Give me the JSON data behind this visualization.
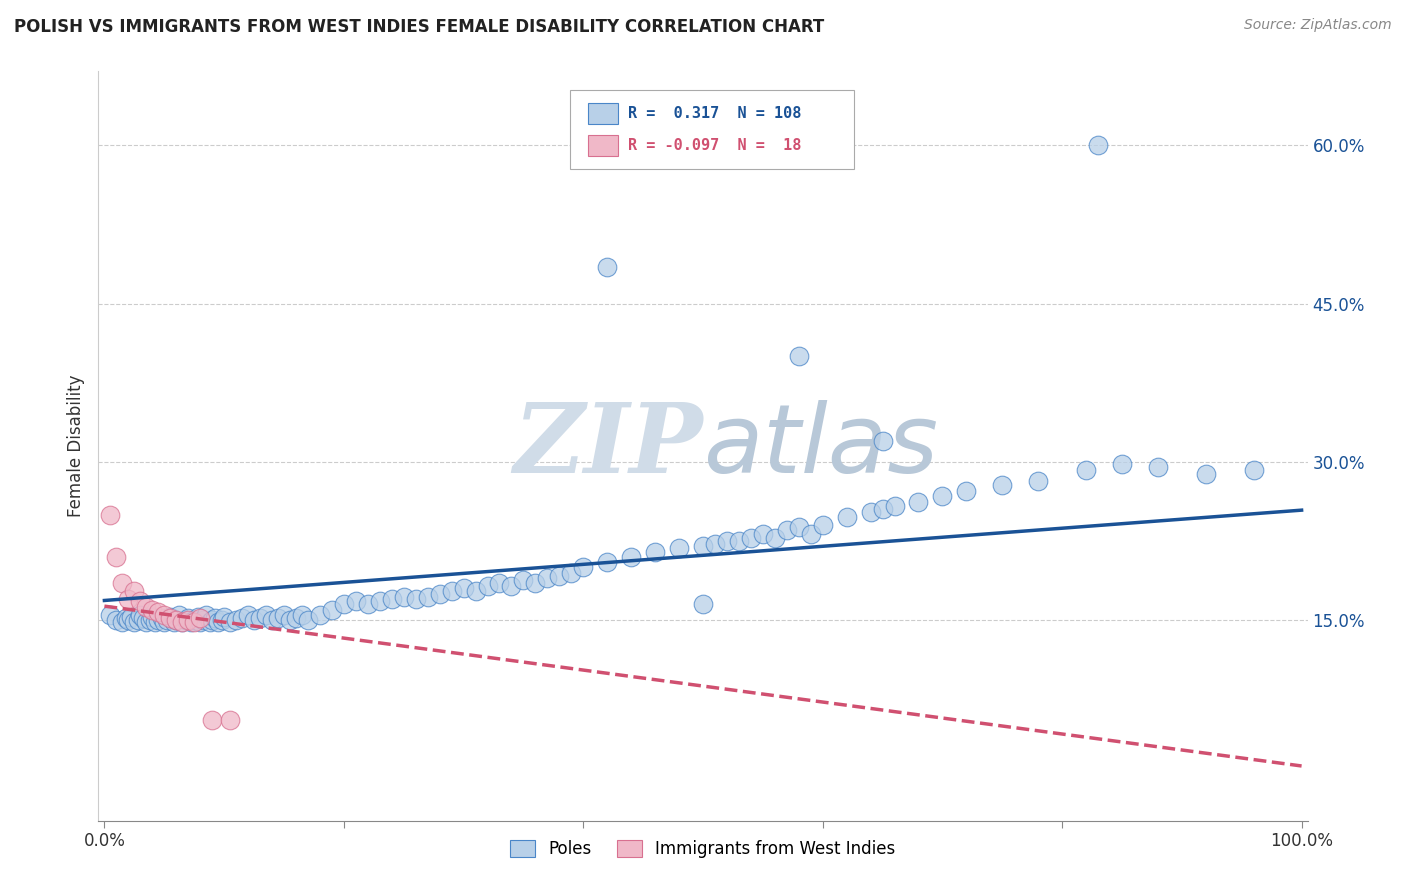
{
  "title": "POLISH VS IMMIGRANTS FROM WEST INDIES FEMALE DISABILITY CORRELATION CHART",
  "source": "Source: ZipAtlas.com",
  "ylabel": "Female Disability",
  "xlim": [
    -0.005,
    1.005
  ],
  "ylim": [
    -0.04,
    0.67
  ],
  "yticks": [
    0.15,
    0.3,
    0.45,
    0.6
  ],
  "ytick_labels": [
    "15.0%",
    "30.0%",
    "45.0%",
    "60.0%"
  ],
  "xticks": [
    0.0,
    0.2,
    0.4,
    0.6,
    0.8,
    1.0
  ],
  "xtick_labels": [
    "0.0%",
    "",
    "",
    "",
    "",
    "100.0%"
  ],
  "blue_R": 0.317,
  "blue_N": 108,
  "pink_R": -0.097,
  "pink_N": 18,
  "blue_scatter_color": "#b8d0e8",
  "blue_edge_color": "#4a86c8",
  "blue_line_color": "#1a5296",
  "pink_scatter_color": "#f0b8c8",
  "pink_edge_color": "#d87090",
  "pink_line_color": "#d05070",
  "legend_label_blue": "Poles",
  "legend_label_pink": "Immigrants from West Indies",
  "background_color": "#ffffff",
  "grid_color": "#cccccc",
  "watermark_color": "#d0dce8",
  "blue_scatter_x": [
    0.005,
    0.01,
    0.015,
    0.018,
    0.02,
    0.022,
    0.025,
    0.028,
    0.03,
    0.032,
    0.035,
    0.038,
    0.04,
    0.042,
    0.045,
    0.048,
    0.05,
    0.052,
    0.055,
    0.058,
    0.06,
    0.062,
    0.065,
    0.068,
    0.07,
    0.072,
    0.075,
    0.078,
    0.08,
    0.082,
    0.085,
    0.088,
    0.09,
    0.092,
    0.095,
    0.098,
    0.1,
    0.105,
    0.11,
    0.115,
    0.12,
    0.125,
    0.13,
    0.135,
    0.14,
    0.145,
    0.15,
    0.155,
    0.16,
    0.165,
    0.17,
    0.18,
    0.19,
    0.2,
    0.21,
    0.22,
    0.23,
    0.24,
    0.25,
    0.26,
    0.27,
    0.28,
    0.29,
    0.3,
    0.31,
    0.32,
    0.33,
    0.34,
    0.35,
    0.36,
    0.37,
    0.38,
    0.39,
    0.4,
    0.42,
    0.44,
    0.46,
    0.48,
    0.5,
    0.51,
    0.52,
    0.53,
    0.54,
    0.55,
    0.56,
    0.57,
    0.58,
    0.59,
    0.6,
    0.62,
    0.64,
    0.65,
    0.66,
    0.68,
    0.7,
    0.72,
    0.75,
    0.78,
    0.82,
    0.85,
    0.88,
    0.92,
    0.96,
    0.42,
    0.5,
    0.58,
    0.65,
    0.83
  ],
  "blue_scatter_y": [
    0.155,
    0.15,
    0.148,
    0.152,
    0.15,
    0.153,
    0.148,
    0.15,
    0.155,
    0.152,
    0.148,
    0.15,
    0.153,
    0.148,
    0.15,
    0.152,
    0.148,
    0.15,
    0.153,
    0.148,
    0.15,
    0.155,
    0.148,
    0.15,
    0.152,
    0.148,
    0.15,
    0.153,
    0.148,
    0.15,
    0.155,
    0.148,
    0.15,
    0.152,
    0.148,
    0.15,
    0.153,
    0.148,
    0.15,
    0.152,
    0.155,
    0.15,
    0.152,
    0.155,
    0.15,
    0.152,
    0.155,
    0.15,
    0.152,
    0.155,
    0.15,
    0.155,
    0.16,
    0.165,
    0.168,
    0.165,
    0.168,
    0.17,
    0.172,
    0.17,
    0.172,
    0.175,
    0.178,
    0.18,
    0.178,
    0.182,
    0.185,
    0.182,
    0.188,
    0.185,
    0.19,
    0.192,
    0.195,
    0.2,
    0.205,
    0.21,
    0.215,
    0.218,
    0.22,
    0.222,
    0.225,
    0.225,
    0.228,
    0.232,
    0.228,
    0.235,
    0.238,
    0.232,
    0.24,
    0.248,
    0.252,
    0.255,
    0.258,
    0.262,
    0.268,
    0.272,
    0.278,
    0.282,
    0.292,
    0.298,
    0.295,
    0.288,
    0.292,
    0.485,
    0.165,
    0.4,
    0.32,
    0.6
  ],
  "pink_scatter_x": [
    0.005,
    0.01,
    0.015,
    0.02,
    0.025,
    0.03,
    0.035,
    0.04,
    0.045,
    0.05,
    0.055,
    0.06,
    0.065,
    0.07,
    0.075,
    0.08,
    0.09,
    0.105
  ],
  "pink_scatter_y": [
    0.25,
    0.21,
    0.185,
    0.17,
    0.178,
    0.168,
    0.162,
    0.16,
    0.158,
    0.155,
    0.152,
    0.15,
    0.148,
    0.15,
    0.148,
    0.152,
    0.055,
    0.055
  ]
}
